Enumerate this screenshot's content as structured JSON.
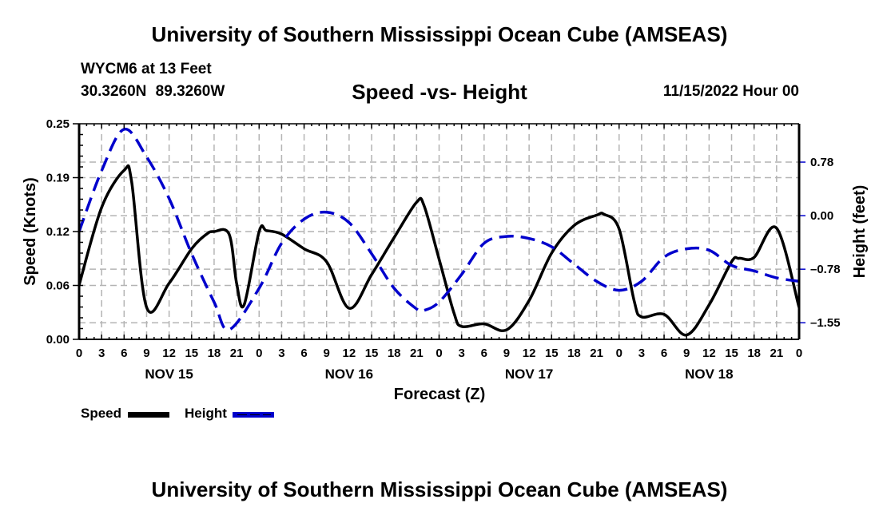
{
  "header": {
    "title": "University of Southern Mississippi Ocean Cube (AMSEAS)",
    "station": "WYCM6 at 13 Feet",
    "coordinates": "30.3260N  89.3260W",
    "chart_title": "Speed -vs- Height",
    "date": "11/15/2022 Hour 00"
  },
  "footer": {
    "title": "University of Southern Mississippi Ocean Cube (AMSEAS)"
  },
  "legend": {
    "speed_label": "Speed",
    "height_label": "Height"
  },
  "colors": {
    "speed": "#000000",
    "height": "#0000cc",
    "grid": "#b4b4b4"
  },
  "chart_data": {
    "type": "line",
    "title": "Speed -vs- Height",
    "xlabel": "Forecast (Z)",
    "ylabel": "Speed (Knots)",
    "y2label": "Height (feet)",
    "x_range_hours": [
      0,
      96
    ],
    "x_tick_labels": [
      "0",
      "3",
      "6",
      "9",
      "12",
      "15",
      "18",
      "21",
      "0",
      "3",
      "6",
      "9",
      "12",
      "15",
      "18",
      "21",
      "0",
      "3",
      "6",
      "9",
      "12",
      "15",
      "18",
      "21",
      "0",
      "3",
      "6",
      "9",
      "12",
      "15",
      "18",
      "21",
      "0"
    ],
    "day_labels": [
      "NOV 15",
      "NOV 16",
      "NOV 17",
      "NOV 18"
    ],
    "ylim": [
      0,
      0.25
    ],
    "y_ticks": [
      "0.00",
      "0.06",
      "0.12",
      "0.19",
      "0.25"
    ],
    "y_tick_values": [
      0.0,
      0.0625,
      0.125,
      0.1875,
      0.25
    ],
    "y2lim": [
      -1.79,
      1.33
    ],
    "y2_ticks": [
      "0.78",
      "0.00",
      "-0.78",
      "-1.55"
    ],
    "y2_tick_values": [
      0.775,
      0.0,
      -0.775,
      -1.55
    ],
    "grid": true,
    "legend_position": "bottom-left",
    "series": [
      {
        "name": "Speed",
        "axis": "left",
        "style": "solid",
        "x": [
          0,
          3,
          6,
          7,
          9,
          12,
          15,
          17,
          18,
          20,
          21,
          22,
          24,
          25,
          27,
          30,
          33,
          36,
          39,
          42,
          45,
          46,
          48,
          50,
          51,
          54,
          57,
          60,
          63,
          66,
          69,
          70,
          72,
          74,
          75,
          78,
          81,
          84,
          87,
          88,
          90,
          93,
          96
        ],
        "values": [
          0.063,
          0.153,
          0.196,
          0.183,
          0.037,
          0.065,
          0.105,
          0.122,
          0.125,
          0.122,
          0.065,
          0.04,
          0.125,
          0.126,
          0.122,
          0.105,
          0.09,
          0.036,
          0.075,
          0.118,
          0.159,
          0.155,
          0.093,
          0.03,
          0.015,
          0.018,
          0.011,
          0.045,
          0.1,
          0.132,
          0.144,
          0.145,
          0.128,
          0.045,
          0.026,
          0.029,
          0.005,
          0.04,
          0.09,
          0.094,
          0.095,
          0.129,
          0.037
        ]
      },
      {
        "name": "Height",
        "axis": "right",
        "style": "dashed",
        "x": [
          0,
          3,
          6,
          9,
          12,
          15,
          18,
          20,
          24,
          27,
          30,
          33,
          36,
          39,
          42,
          45,
          46,
          48,
          51,
          54,
          57,
          60,
          63,
          66,
          69,
          72,
          75,
          78,
          81,
          84,
          87,
          90,
          93,
          96
        ],
        "values": [
          -0.23,
          0.65,
          1.25,
          0.85,
          0.25,
          -0.55,
          -1.25,
          -1.65,
          -1.05,
          -0.4,
          -0.05,
          0.05,
          -0.1,
          -0.55,
          -1.05,
          -1.35,
          -1.37,
          -1.25,
          -0.85,
          -0.4,
          -0.3,
          -0.33,
          -0.45,
          -0.7,
          -0.95,
          -1.08,
          -0.95,
          -0.6,
          -0.48,
          -0.5,
          -0.72,
          -0.8,
          -0.9,
          -0.95
        ]
      }
    ]
  }
}
